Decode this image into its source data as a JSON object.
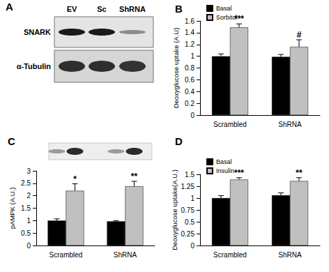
{
  "chart_data": [
    {
      "type": "bar",
      "title": "B",
      "ylabel": "Deoxyglucose uptake (A.U)",
      "categories": [
        "Scrambled",
        "ShRNA"
      ],
      "series": [
        {
          "name": "Basal",
          "color": "#000000",
          "values": [
            1.0,
            0.99
          ],
          "errors": [
            0.04,
            0.04
          ],
          "annotations": [
            null,
            null
          ]
        },
        {
          "name": "Sorbitol",
          "color": "#c0c0c0",
          "values": [
            1.49,
            1.16
          ],
          "errors": [
            0.06,
            0.12
          ],
          "annotations": [
            "***",
            "#"
          ]
        }
      ],
      "ylim": [
        0,
        1.6
      ],
      "yticks": [
        0,
        0.2,
        0.4,
        0.6,
        0.8,
        1,
        1.2,
        1.4,
        1.6
      ],
      "grid": false,
      "legend": "top-left"
    },
    {
      "type": "bar",
      "title": "C",
      "ylabel": "pAMPK (A.U.)",
      "categories": [
        "Scrambled",
        "ShRNA"
      ],
      "series": [
        {
          "color": "#000000",
          "values": [
            1.0,
            0.97
          ],
          "errors": [
            0.07,
            0.03
          ],
          "annotations": [
            null,
            null
          ]
        },
        {
          "color": "#c0c0c0",
          "values": [
            2.2,
            2.38
          ],
          "errors": [
            0.28,
            0.2
          ],
          "annotations": [
            "*",
            "**"
          ]
        }
      ],
      "ylim": [
        0,
        3
      ],
      "yticks": [
        0,
        0.5,
        1,
        1.5,
        2,
        2.5,
        3
      ],
      "grid": false
    },
    {
      "type": "bar",
      "title": "D",
      "ylabel": "Deoxyglucose uptake(A.U.)",
      "categories": [
        "Scrambled",
        "ShRNA"
      ],
      "series": [
        {
          "name": "Basal",
          "color": "#000000",
          "values": [
            1.0,
            1.06
          ],
          "errors": [
            0.05,
            0.05
          ],
          "annotations": [
            null,
            null
          ]
        },
        {
          "name": "Insulin",
          "color": "#c0c0c0",
          "values": [
            1.39,
            1.36
          ],
          "errors": [
            0.04,
            0.07
          ],
          "annotations": [
            "***",
            "**"
          ]
        }
      ],
      "ylim": [
        0,
        1.5
      ],
      "yticks": [
        0,
        0.25,
        0.5,
        0.75,
        1,
        1.25,
        1.5
      ],
      "grid": false,
      "legend": "top-left"
    }
  ],
  "blot": {
    "title": "A",
    "lanes": [
      "EV",
      "Sc",
      "ShRNA"
    ],
    "rows": [
      "SNARK",
      "α-Tubulin"
    ]
  }
}
